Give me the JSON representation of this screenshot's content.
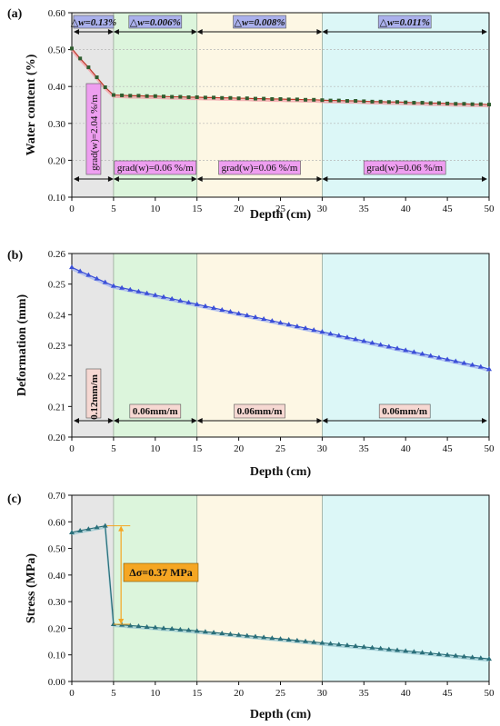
{
  "colors": {
    "region_gray": "#e6e6e6",
    "region_green": "#dcf5dc",
    "region_yellow": "#fdf7e4",
    "region_cyan": "#dcf7f7",
    "series_a": "#c0392b",
    "series_a_markers": "#2f5d2f",
    "series_a_fit": "#f2a0a8",
    "series_b": "#3b4fd8",
    "series_b_fit": "#a8b8f0",
    "series_c": "#2a6f7a",
    "series_c_fit": "#9ecbd3",
    "top_label_fill": "#aab0ec",
    "bottom_label_fill_a": "#ee9ef0",
    "bottom_label_fill_b": "#f6d8d2",
    "delta_fill": "#f5a623"
  },
  "chart_data": [
    {
      "panel": "(a)",
      "type": "line",
      "xlabel": "Depth (cm)",
      "ylabel": "Water content (%)",
      "xlim": [
        0,
        50
      ],
      "ylim": [
        0.1,
        0.6
      ],
      "xticks": [
        "0",
        "5",
        "10",
        "15",
        "20",
        "25",
        "30",
        "35",
        "40",
        "45",
        "50"
      ],
      "yticks": [
        "0.10",
        "0.20",
        "0.30",
        "0.40",
        "0.50",
        "0.60"
      ],
      "grid": true,
      "regions": [
        [
          0,
          5
        ],
        [
          5,
          15
        ],
        [
          15,
          30
        ],
        [
          30,
          50
        ]
      ],
      "top_labels": [
        "△w=0.13%",
        "△w=0.006%",
        "△w=0.008%",
        "△w=0.011%"
      ],
      "bottom_labels": [
        "grad(w)=2.04 %/m",
        "grad(w)=0.06 %/m",
        "grad(w)=0.06 %/m",
        "grad(w)=0.06 %/m"
      ],
      "series": [
        {
          "x": [
            0,
            1,
            2,
            3,
            4,
            5,
            6,
            7,
            8,
            9,
            10,
            11,
            12,
            13,
            14,
            15,
            16,
            17,
            18,
            19,
            20,
            21,
            22,
            23,
            24,
            25,
            26,
            27,
            28,
            29,
            30,
            31,
            32,
            33,
            34,
            35,
            36,
            37,
            38,
            39,
            40,
            41,
            42,
            43,
            44,
            45,
            46,
            47,
            48,
            49,
            50
          ],
          "y": [
            0.503,
            0.476,
            0.452,
            0.425,
            0.398,
            0.377,
            0.376,
            0.375,
            0.375,
            0.374,
            0.374,
            0.373,
            0.372,
            0.372,
            0.371,
            0.371,
            0.37,
            0.37,
            0.369,
            0.369,
            0.368,
            0.368,
            0.367,
            0.367,
            0.366,
            0.366,
            0.365,
            0.365,
            0.364,
            0.364,
            0.363,
            0.362,
            0.362,
            0.361,
            0.361,
            0.36,
            0.359,
            0.359,
            0.358,
            0.358,
            0.357,
            0.356,
            0.356,
            0.355,
            0.355,
            0.354,
            0.353,
            0.353,
            0.352,
            0.352,
            0.351
          ]
        }
      ]
    },
    {
      "panel": "(b)",
      "type": "line",
      "xlabel": "Depth (cm)",
      "ylabel": "Deformation (mm)",
      "xlim": [
        0,
        50
      ],
      "ylim": [
        0.2,
        0.26
      ],
      "xticks": [
        "0",
        "5",
        "10",
        "15",
        "20",
        "25",
        "30",
        "35",
        "40",
        "45",
        "50"
      ],
      "yticks": [
        "0.20",
        "0.21",
        "0.22",
        "0.23",
        "0.24",
        "0.25",
        "0.26"
      ],
      "grid": false,
      "regions": [
        [
          0,
          5
        ],
        [
          5,
          15
        ],
        [
          15,
          30
        ],
        [
          30,
          50
        ]
      ],
      "bottom_labels": [
        "0.12mm/m",
        "0.06mm/m",
        "0.06mm/m",
        "0.06mm/m"
      ],
      "series": [
        {
          "x": [
            0,
            1,
            2,
            3,
            4,
            5,
            6,
            7,
            8,
            9,
            10,
            11,
            12,
            13,
            14,
            15,
            16,
            17,
            18,
            19,
            20,
            21,
            22,
            23,
            24,
            25,
            26,
            27,
            28,
            29,
            30,
            31,
            32,
            33,
            34,
            35,
            36,
            37,
            38,
            39,
            40,
            41,
            42,
            43,
            44,
            45,
            46,
            47,
            48,
            49,
            50
          ],
          "y": [
            0.2555,
            0.2542,
            0.253,
            0.2518,
            0.2506,
            0.2494,
            0.2488,
            0.2482,
            0.2476,
            0.247,
            0.2464,
            0.2458,
            0.2452,
            0.2446,
            0.244,
            0.2434,
            0.2428,
            0.2422,
            0.2416,
            0.241,
            0.2404,
            0.2398,
            0.2392,
            0.2386,
            0.238,
            0.2374,
            0.2368,
            0.2362,
            0.2356,
            0.235,
            0.2344,
            0.2338,
            0.2332,
            0.2326,
            0.232,
            0.2314,
            0.2308,
            0.2302,
            0.2296,
            0.229,
            0.2284,
            0.2278,
            0.2272,
            0.2266,
            0.226,
            0.2254,
            0.2248,
            0.2242,
            0.2236,
            0.223,
            0.2222
          ]
        }
      ]
    },
    {
      "panel": "(c)",
      "type": "line",
      "xlabel": "Depth (cm)",
      "ylabel": "Stress (MPa)",
      "xlim": [
        0,
        50
      ],
      "ylim": [
        0.0,
        0.7
      ],
      "xticks": [
        "0",
        "5",
        "10",
        "15",
        "20",
        "25",
        "30",
        "35",
        "40",
        "45",
        "50"
      ],
      "yticks": [
        "0.00",
        "0.10",
        "0.20",
        "0.30",
        "0.40",
        "0.50",
        "0.60",
        "0.70"
      ],
      "grid": false,
      "regions": [
        [
          0,
          5
        ],
        [
          5,
          15
        ],
        [
          15,
          30
        ],
        [
          30,
          50
        ]
      ],
      "annotation": "Δσ=0.37 MPa",
      "series": [
        {
          "x": [
            0,
            1,
            2,
            3,
            4,
            5,
            6,
            7,
            8,
            9,
            10,
            11,
            12,
            13,
            14,
            15,
            16,
            17,
            18,
            19,
            20,
            21,
            22,
            23,
            24,
            25,
            26,
            27,
            28,
            29,
            30,
            31,
            32,
            33,
            34,
            35,
            36,
            37,
            38,
            39,
            40,
            41,
            42,
            43,
            44,
            45,
            46,
            47,
            48,
            49,
            50
          ],
          "y": [
            0.56,
            0.567,
            0.573,
            0.579,
            0.585,
            0.215,
            0.213,
            0.21,
            0.208,
            0.205,
            0.203,
            0.2,
            0.198,
            0.195,
            0.193,
            0.19,
            0.187,
            0.184,
            0.181,
            0.178,
            0.175,
            0.172,
            0.169,
            0.166,
            0.163,
            0.16,
            0.157,
            0.154,
            0.151,
            0.148,
            0.145,
            0.142,
            0.139,
            0.136,
            0.133,
            0.13,
            0.127,
            0.124,
            0.121,
            0.118,
            0.115,
            0.112,
            0.109,
            0.106,
            0.103,
            0.1,
            0.097,
            0.094,
            0.091,
            0.088,
            0.085
          ]
        }
      ]
    }
  ]
}
